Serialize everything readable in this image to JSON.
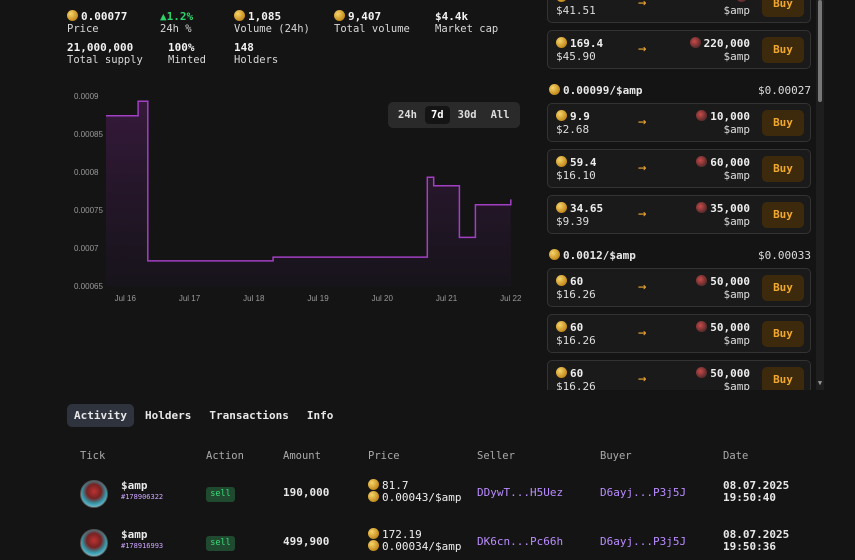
{
  "stats": {
    "price_value": "0.00077",
    "price_label": "Price",
    "change_value": "1.2%",
    "change_label": "24h %",
    "volume24_value": "1,085",
    "volume24_label": "Volume (24h)",
    "total_volume_value": "9,407",
    "total_volume_label": "Total volume",
    "market_cap_value": "$4.4k",
    "market_cap_label": "Market cap",
    "supply_value": "21,000,000",
    "supply_label": "Total supply",
    "minted_value": "100%",
    "minted_label": "Minted",
    "holders_value": "148",
    "holders_label": "Holders"
  },
  "chart_ranges": [
    "24h",
    "7d",
    "30d",
    "All"
  ],
  "chart_range_active": "7d",
  "chart_data": {
    "type": "area",
    "x_ticks": [
      "Jul 16",
      "Jul 17",
      "Jul 18",
      "Jul 19",
      "Jul 20",
      "Jul 21",
      "Jul 22"
    ],
    "y_ticks": [
      "0.0009",
      "0.00085",
      "0.0008",
      "0.00075",
      "0.0007",
      "0.00065"
    ],
    "ylim": [
      0.00065,
      0.0009
    ],
    "xlim": [
      15.7,
      22.05
    ],
    "series": [
      {
        "x": [
          15.7,
          16.2,
          16.2,
          16.35,
          16.35,
          18.3,
          18.3,
          20.7,
          20.7,
          20.8,
          20.8,
          21.2,
          21.2,
          21.45,
          21.45,
          22.0,
          22.0
        ],
        "values": [
          0.000874,
          0.000874,
          0.000893,
          0.000893,
          0.000683,
          0.000683,
          0.000688,
          0.000688,
          0.000793,
          0.000793,
          0.000782,
          0.000782,
          0.000714,
          0.000714,
          0.000757,
          0.000757,
          0.000764
        ]
      }
    ],
    "line_color": "#a23fc4"
  },
  "listing_groups": [
    {
      "label": "",
      "unit_price": "",
      "cards": [
        {
          "tokens": "",
          "usd": "$41.51",
          "amount": "",
          "unit": "$amp",
          "buy": "Buy"
        },
        {
          "tokens": "169.4",
          "usd": "$45.90",
          "amount": "220,000",
          "unit": "$amp",
          "buy": "Buy"
        }
      ]
    },
    {
      "label": "0.00099/$amp",
      "unit_price": "$0.00027",
      "cards": [
        {
          "tokens": "9.9",
          "usd": "$2.68",
          "amount": "10,000",
          "unit": "$amp",
          "buy": "Buy"
        },
        {
          "tokens": "59.4",
          "usd": "$16.10",
          "amount": "60,000",
          "unit": "$amp",
          "buy": "Buy"
        },
        {
          "tokens": "34.65",
          "usd": "$9.39",
          "amount": "35,000",
          "unit": "$amp",
          "buy": "Buy"
        }
      ]
    },
    {
      "label": "0.0012/$amp",
      "unit_price": "$0.00033",
      "cards": [
        {
          "tokens": "60",
          "usd": "$16.26",
          "amount": "50,000",
          "unit": "$amp",
          "buy": "Buy"
        },
        {
          "tokens": "60",
          "usd": "$16.26",
          "amount": "50,000",
          "unit": "$amp",
          "buy": "Buy"
        },
        {
          "tokens": "60",
          "usd": "$16.26",
          "amount": "50,000",
          "unit": "$amp",
          "buy": "Buy"
        }
      ]
    }
  ],
  "tabs": [
    "Activity",
    "Holders",
    "Transactions",
    "Info"
  ],
  "table": {
    "headers": [
      "Tick",
      "Action",
      "Amount",
      "Price",
      "Seller",
      "Buyer",
      "Date"
    ],
    "rows": [
      {
        "tick": "$amp",
        "id": "#178906322",
        "action": "sell",
        "amount": "190,000",
        "price_total": "81.7",
        "price_unit": "0.00043/$amp",
        "seller": "DDywT...H5Uez",
        "buyer": "D6ayj...P3j5J",
        "date": "08.07.2025",
        "time": "19:50:40"
      },
      {
        "tick": "$amp",
        "id": "#178916993",
        "action": "sell",
        "amount": "499,900",
        "price_total": "172.19",
        "price_unit": "0.00034/$amp",
        "seller": "DK6cn...Pc66h",
        "buyer": "D6ayj...P3j5J",
        "date": "08.07.2025",
        "time": "19:50:36"
      }
    ]
  }
}
